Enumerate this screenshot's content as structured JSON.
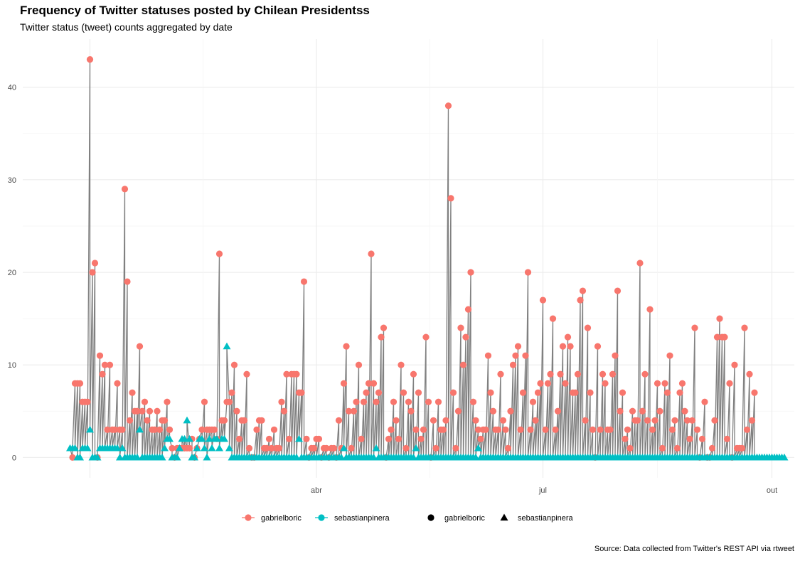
{
  "title": "Frequency of Twitter statuses posted by Chilean Presidentss",
  "subtitle": "Twitter status (tweet) counts aggregated by date",
  "caption": "Source: Data collected from Twitter's REST API via rtweet",
  "colors": {
    "gabrielboric": "#F8766D",
    "sebastianpinera": "#00BFC4",
    "line": "#808080",
    "grid_major": "#EBEBEB",
    "grid_minor": "#F5F5F5",
    "axis_text": "#4D4D4D"
  },
  "legend": {
    "color_items": [
      {
        "label": "gabrielboric",
        "color": "#F8766D"
      },
      {
        "label": "sebastianpinera",
        "color": "#00BFC4"
      }
    ],
    "shape_items": [
      {
        "label": "gabrielboric",
        "shape": "circle"
      },
      {
        "label": "sebastianpinera",
        "shape": "triangle"
      }
    ]
  },
  "chart_data": {
    "type": "line",
    "xlabel": "",
    "ylabel": "",
    "x_axis": {
      "ticks": [
        {
          "date": "2022-04-01",
          "label": "abr"
        },
        {
          "date": "2022-07-01",
          "label": "jul"
        },
        {
          "date": "2022-10-01",
          "label": "out"
        }
      ],
      "range": [
        "2021-12-04",
        "2022-10-10"
      ]
    },
    "y_axis": {
      "ticks": [
        0,
        10,
        20,
        30,
        40
      ],
      "range": [
        -2.2,
        45.2
      ]
    },
    "grid": true,
    "legend_position": "bottom",
    "series": [
      {
        "name": "gabrielboric",
        "shape": "circle",
        "start": "2021-12-24",
        "values": [
          0,
          8,
          8,
          8,
          6,
          6,
          6,
          43,
          20,
          21,
          0,
          11,
          9,
          10,
          3,
          10,
          3,
          3,
          8,
          3,
          3,
          29,
          19,
          4,
          7,
          5,
          5,
          12,
          5,
          6,
          4,
          5,
          3,
          3,
          5,
          3,
          4,
          4,
          6,
          3,
          1,
          0,
          1,
          1,
          1,
          1,
          1,
          1,
          2,
          0,
          1,
          2,
          3,
          6,
          3,
          3,
          3,
          3,
          2,
          22,
          4,
          4,
          6,
          6,
          7,
          10,
          5,
          2,
          4,
          4,
          9,
          1,
          0,
          0,
          3,
          4,
          4,
          1,
          1,
          2,
          1,
          3,
          1,
          1,
          6,
          5,
          9,
          2,
          9,
          9,
          9,
          7,
          7,
          19,
          2,
          0,
          1,
          1,
          2,
          2,
          0,
          1,
          1,
          0,
          1,
          1,
          0,
          4,
          1,
          8,
          12,
          5,
          1,
          5,
          6,
          10,
          2,
          6,
          7,
          8,
          22,
          8,
          6,
          7,
          13,
          14,
          0,
          2,
          3,
          6,
          4,
          2,
          10,
          7,
          1,
          6,
          5,
          9,
          3,
          7,
          2,
          3,
          13,
          6,
          0,
          4,
          1,
          6,
          3,
          3,
          4,
          38,
          28,
          7,
          1,
          5,
          14,
          10,
          13,
          16,
          20,
          6,
          4,
          3,
          2,
          3,
          3,
          11,
          7,
          5,
          3,
          3,
          9,
          4,
          3,
          1,
          5,
          10,
          11,
          12,
          3,
          7,
          11,
          20,
          3,
          6,
          4,
          7,
          8,
          17,
          3,
          8,
          9,
          15,
          3,
          5,
          9,
          12,
          8,
          13,
          12,
          7,
          7,
          9,
          17,
          18,
          4,
          14,
          7,
          3,
          0,
          12,
          3,
          9,
          8,
          3,
          3,
          9,
          11,
          18,
          5,
          7,
          2,
          3,
          1,
          5,
          4,
          4,
          21,
          5,
          9,
          4,
          16,
          3,
          4,
          8,
          5,
          1,
          8,
          7,
          11,
          3,
          4,
          1,
          7,
          8,
          5,
          4,
          2,
          4,
          14,
          3,
          0,
          2,
          6,
          0,
          0,
          1,
          4,
          13,
          15,
          13,
          13,
          2,
          8,
          0,
          10,
          1,
          1,
          1,
          14,
          3,
          9,
          4,
          7
        ]
      },
      {
        "name": "sebastianpinera",
        "shape": "triangle",
        "start": "2021-12-23",
        "values": [
          1,
          1,
          1,
          0,
          0,
          1,
          1,
          1,
          3,
          0,
          0,
          0,
          1,
          1,
          1,
          1,
          1,
          1,
          1,
          1,
          0,
          1,
          0,
          0,
          0,
          0,
          0,
          0,
          3,
          0,
          0,
          0,
          0,
          0,
          0,
          0,
          0,
          0,
          1,
          2,
          2,
          0,
          0,
          0,
          1,
          2,
          2,
          4,
          2,
          0,
          0,
          1,
          2,
          2,
          1,
          0,
          2,
          1,
          2,
          2,
          1,
          2,
          2,
          12,
          1,
          0,
          0,
          0,
          0,
          0,
          0,
          0,
          0,
          0,
          0,
          0,
          0,
          0,
          0,
          0,
          0,
          0,
          0,
          0,
          0,
          0,
          0,
          0,
          0,
          0,
          0,
          0,
          2,
          0,
          0,
          0,
          0,
          0,
          0,
          0,
          0,
          0,
          0,
          0,
          0,
          0,
          0,
          0,
          0,
          0,
          1,
          0,
          0,
          0,
          0,
          0,
          0,
          0,
          0,
          0,
          0,
          0,
          0,
          1,
          0,
          0,
          0,
          0,
          0,
          0,
          0,
          0,
          0,
          0,
          0,
          0,
          0,
          0,
          0,
          1,
          0,
          0,
          0,
          0,
          0,
          0,
          0,
          0,
          0,
          0,
          0,
          0,
          0,
          0,
          0,
          0,
          0,
          0,
          0,
          0,
          0,
          0,
          0,
          0,
          1,
          0,
          0,
          0,
          0,
          0,
          0,
          0,
          0,
          0,
          0,
          0,
          0,
          0,
          0,
          0,
          0,
          0,
          0,
          0,
          0,
          0,
          0,
          0,
          0,
          0,
          0,
          0,
          0,
          0,
          0,
          0,
          0,
          0,
          0,
          0,
          0,
          0,
          0,
          0,
          0,
          0,
          0,
          0,
          0,
          0,
          0,
          0,
          0,
          0,
          0,
          0,
          0,
          0,
          0,
          0,
          0,
          0,
          0,
          0,
          0,
          0,
          0,
          0,
          0,
          0,
          0,
          0,
          0,
          0,
          0,
          0,
          0,
          0,
          0,
          0,
          0,
          0,
          0,
          0,
          0,
          0,
          0,
          0,
          0,
          0,
          0,
          0,
          0,
          0,
          0,
          0,
          0,
          0,
          0,
          0,
          0,
          0,
          0,
          0,
          0,
          0,
          0,
          0,
          0,
          0,
          0,
          0,
          0,
          0,
          0,
          0,
          0,
          0,
          0,
          0,
          0,
          0,
          0,
          0,
          0,
          0,
          0,
          0
        ]
      }
    ]
  }
}
